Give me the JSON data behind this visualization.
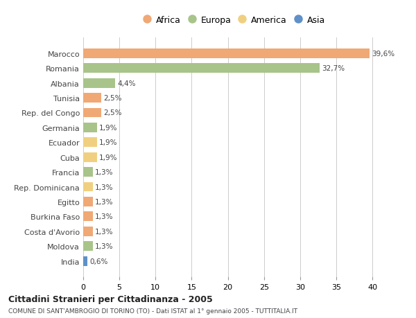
{
  "categories": [
    "Marocco",
    "Romania",
    "Albania",
    "Tunisia",
    "Rep. del Congo",
    "Germania",
    "Ecuador",
    "Cuba",
    "Francia",
    "Rep. Dominicana",
    "Egitto",
    "Burkina Faso",
    "Costa d'Avorio",
    "Moldova",
    "India"
  ],
  "values": [
    39.6,
    32.7,
    4.4,
    2.5,
    2.5,
    1.9,
    1.9,
    1.9,
    1.3,
    1.3,
    1.3,
    1.3,
    1.3,
    1.3,
    0.6
  ],
  "labels": [
    "39,6%",
    "32,7%",
    "4,4%",
    "2,5%",
    "2,5%",
    "1,9%",
    "1,9%",
    "1,9%",
    "1,3%",
    "1,3%",
    "1,3%",
    "1,3%",
    "1,3%",
    "1,3%",
    "0,6%"
  ],
  "continent": [
    "Africa",
    "Europa",
    "Europa",
    "Africa",
    "Africa",
    "Europa",
    "America",
    "America",
    "Europa",
    "America",
    "Africa",
    "Africa",
    "Africa",
    "Europa",
    "Asia"
  ],
  "colors": {
    "Africa": "#F0A875",
    "Europa": "#A8C48A",
    "America": "#F0D080",
    "Asia": "#6090C8"
  },
  "legend_order": [
    "Africa",
    "Europa",
    "America",
    "Asia"
  ],
  "xlim": [
    0,
    42
  ],
  "xticks": [
    0,
    5,
    10,
    15,
    20,
    25,
    30,
    35,
    40
  ],
  "title": "Cittadini Stranieri per Cittadinanza - 2005",
  "subtitle": "COMUNE DI SANT'AMBROGIO DI TORINO (TO) - Dati ISTAT al 1° gennaio 2005 - TUTTITALIA.IT",
  "bg_color": "#FFFFFF",
  "grid_color": "#CCCCCC",
  "bar_height": 0.65
}
